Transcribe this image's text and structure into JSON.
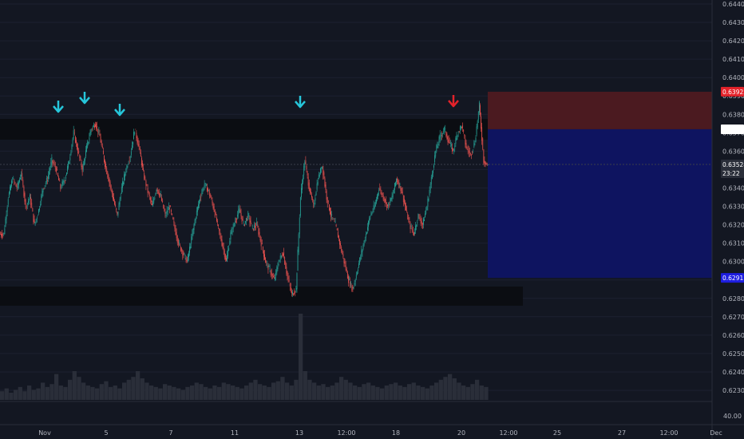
{
  "chart_data": {
    "type": "candlestick",
    "price_axis": {
      "min": 0.623,
      "max": 0.644,
      "ticks": [
        "0.64400",
        "0.64300",
        "0.64200",
        "0.64100",
        "0.64000",
        "0.63900",
        "0.63800",
        "0.63700",
        "0.63600",
        "0.63500",
        "0.63400",
        "0.63300",
        "0.63200",
        "0.63100",
        "0.63000",
        "0.62900",
        "0.62800",
        "0.62700",
        "0.62600",
        "0.62500",
        "0.62400",
        "0.62300"
      ]
    },
    "time_axis": {
      "labels": [
        "Nov",
        "5",
        "7",
        "11",
        "13",
        "12:00",
        "18",
        "20",
        "12:00",
        "25",
        "27",
        "12:00",
        "Dec"
      ]
    },
    "volume_axis_label": "40.00",
    "resistance_zone": {
      "from": 0.6369,
      "to": 0.6375
    },
    "support_zone": {
      "from": 0.6276,
      "to": 0.6281
    },
    "position": {
      "stop_loss": 0.63923,
      "entry": 0.63719,
      "target": 0.62911,
      "type": "short"
    },
    "price_tags": [
      {
        "label": "0.63923",
        "value": 0.63923,
        "color": "#e3222a"
      },
      {
        "label": "0.63719",
        "value": 0.63719,
        "color": "#ffffff"
      },
      {
        "label": "0.63528",
        "value": 0.63528,
        "color": "#2a2e39"
      },
      {
        "label": "23:22",
        "value": 0.6348,
        "color": "#2a2e39"
      },
      {
        "label": "0.62911",
        "value": 0.62911,
        "color": "#1e1ee0"
      }
    ],
    "last_price": 0.63528,
    "countdown": "23:22",
    "markers": [
      {
        "x": "Nov 3",
        "direction": "down",
        "color": "#26c6da"
      },
      {
        "x": "Nov 4",
        "direction": "down",
        "color": "#26c6da"
      },
      {
        "x": "Nov 5",
        "direction": "down",
        "color": "#26c6da"
      },
      {
        "x": "Nov 13",
        "direction": "down",
        "color": "#26c6da"
      },
      {
        "x": "Nov 19",
        "direction": "down",
        "color": "#e3222a"
      }
    ],
    "price_path": [
      0.6315,
      0.6335,
      0.6345,
      0.634,
      0.6348,
      0.633,
      0.6335,
      0.632,
      0.6328,
      0.634,
      0.6345,
      0.6355,
      0.635,
      0.634,
      0.6345,
      0.6355,
      0.637,
      0.636,
      0.635,
      0.6362,
      0.6372,
      0.6375,
      0.6368,
      0.6355,
      0.6345,
      0.6335,
      0.6325,
      0.634,
      0.635,
      0.6358,
      0.6372,
      0.6362,
      0.6348,
      0.6338,
      0.633,
      0.634,
      0.6335,
      0.6325,
      0.633,
      0.632,
      0.631,
      0.6305,
      0.63,
      0.6312,
      0.6325,
      0.6335,
      0.6342,
      0.6338,
      0.633,
      0.632,
      0.631,
      0.63,
      0.6315,
      0.6322,
      0.6328,
      0.632,
      0.6325,
      0.6318,
      0.632,
      0.631,
      0.63,
      0.6295,
      0.629,
      0.63,
      0.6305,
      0.6292,
      0.6282,
      0.6285,
      0.6335,
      0.6355,
      0.634,
      0.633,
      0.6345,
      0.6352,
      0.6335,
      0.6325,
      0.632,
      0.631,
      0.63,
      0.629,
      0.6285,
      0.6295,
      0.6305,
      0.6315,
      0.6325,
      0.633,
      0.634,
      0.6335,
      0.633,
      0.6335,
      0.6345,
      0.634,
      0.633,
      0.632,
      0.6315,
      0.6325,
      0.632,
      0.633,
      0.6345,
      0.636,
      0.6368,
      0.6372,
      0.6365,
      0.636,
      0.637,
      0.6374,
      0.6362,
      0.6358,
      0.6365,
      0.6385,
      0.6355,
      0.6352
    ],
    "volume_series": [
      6,
      8,
      5,
      7,
      9,
      6,
      10,
      7,
      8,
      12,
      9,
      11,
      18,
      10,
      9,
      14,
      20,
      16,
      12,
      10,
      9,
      8,
      11,
      13,
      9,
      10,
      8,
      12,
      14,
      16,
      20,
      15,
      12,
      10,
      9,
      8,
      11,
      10,
      9,
      8,
      7,
      9,
      10,
      12,
      11,
      9,
      8,
      10,
      9,
      12,
      11,
      10,
      9,
      8,
      10,
      12,
      14,
      11,
      10,
      9,
      12,
      13,
      16,
      12,
      10,
      14,
      60,
      20,
      14,
      12,
      10,
      11,
      9,
      10,
      12,
      16,
      14,
      12,
      10,
      9,
      11,
      12,
      10,
      9,
      8,
      10,
      11,
      12,
      10,
      9,
      11,
      12,
      10,
      9,
      8,
      10,
      12,
      14,
      16,
      18,
      15,
      12,
      10,
      9,
      11,
      14,
      10,
      9
    ]
  }
}
